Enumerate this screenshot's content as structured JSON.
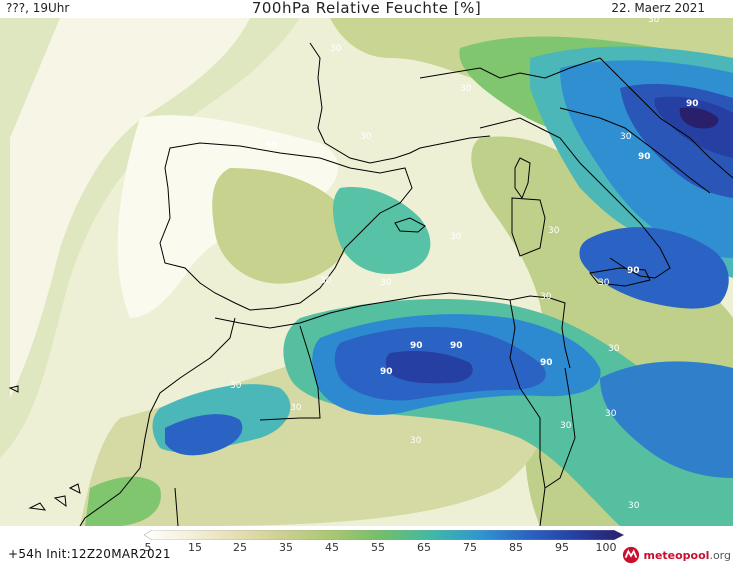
{
  "header": {
    "left": "???, 19Uhr",
    "title": "700hPa Relative Feuchte [%]",
    "right": "22. Maerz 2021"
  },
  "legend": {
    "ticks": [
      "5",
      "15",
      "25",
      "35",
      "45",
      "55",
      "65",
      "75",
      "85",
      "95",
      "100"
    ],
    "colors": [
      "#ffffff",
      "#f3efd8",
      "#e4ddb0",
      "#c9cf8e",
      "#a6c66f",
      "#6fbf6a",
      "#3fb9a6",
      "#2f96d1",
      "#2b63c4",
      "#253fa3",
      "#2a1f6b"
    ]
  },
  "contour_labels": [
    "30",
    "30",
    "30",
    "30",
    "30",
    "30",
    "30",
    "30",
    "30",
    "30",
    "30",
    "30",
    "30",
    "30",
    "30",
    "30",
    "90",
    "90",
    "90",
    "90",
    "90",
    "90",
    "90",
    "90",
    "30",
    "30"
  ],
  "footer": {
    "run": "+54h Init:12Z20MAR2021",
    "brand": "meteopool",
    "brand_tld": ".org"
  }
}
